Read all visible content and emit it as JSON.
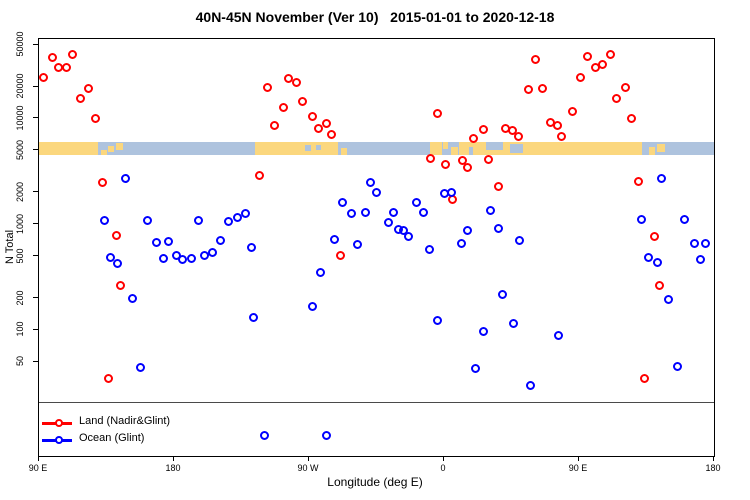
{
  "title": "40N-45N November (Ver 10)   2015-01-01 to 2020-12-18",
  "chart_data": {
    "type": "scatter",
    "title": "40N-45N November (Ver 10)   2015-01-01 to 2020-12-18",
    "xlabel": "Longitude (deg E)",
    "ylabel": "N Total",
    "x_scale": "longitude-wrapped",
    "y_scale": "log",
    "xlim": [
      90,
      540
    ],
    "ylim": [
      6.5,
      57000
    ],
    "x_ticks": [
      {
        "value": 90,
        "label": "90 E"
      },
      {
        "value": 180,
        "label": "180"
      },
      {
        "value": 270,
        "label": "90 W"
      },
      {
        "value": 360,
        "label": "0"
      },
      {
        "value": 450,
        "label": "90 E"
      },
      {
        "value": 540,
        "label": "180"
      }
    ],
    "y_ticks": [
      50,
      100,
      200,
      500,
      1000,
      2000,
      5000,
      10000,
      20000,
      50000
    ],
    "threshold_line": {
      "value": 21,
      "color": "#4a4a4a"
    },
    "map_strip": {
      "description": "land/ocean map of the 40N-45N latitude band drawn as horizontal stripe",
      "top_value": 6050,
      "bottom_value": 4560,
      "ocean_color": "#AEC3DE",
      "land_color": "#FBD77E",
      "land_segments": [
        [
          90,
          129,
          0,
          100
        ],
        [
          131,
          135,
          60,
          40
        ],
        [
          136,
          140,
          30,
          50
        ],
        [
          141,
          146,
          10,
          55
        ],
        [
          234,
          289,
          0,
          100
        ],
        [
          291,
          295,
          45,
          55
        ],
        [
          350.5,
          358.5,
          0,
          100
        ],
        [
          359,
          362.5,
          0,
          55
        ],
        [
          364.5,
          369,
          35,
          65
        ],
        [
          370,
          492,
          0,
          100
        ],
        [
          496.5,
          500.5,
          35,
          65
        ],
        [
          502,
          507,
          15,
          60
        ]
      ],
      "water_patches": [
        [
          267.5,
          271,
          25,
          45
        ],
        [
          274.5,
          278,
          22,
          40
        ],
        [
          376.5,
          379.5,
          40,
          60
        ],
        [
          388,
          399,
          0,
          58
        ],
        [
          404,
          412.5,
          18,
          64
        ]
      ]
    },
    "series": [
      {
        "name": "Land (Nadir&Glint)",
        "color": "#FF0000",
        "points": [
          {
            "lon": 99.3,
            "n": 38000
          },
          {
            "lon": 112.7,
            "n": 40000
          },
          {
            "lon": 103.3,
            "n": 30500
          },
          {
            "lon": 108.7,
            "n": 30500
          },
          {
            "lon": 93.3,
            "n": 24500
          },
          {
            "lon": 123.3,
            "n": 19300
          },
          {
            "lon": 118.0,
            "n": 15500
          },
          {
            "lon": 128.0,
            "n": 9900
          },
          {
            "lon": 132.7,
            "n": 2500
          },
          {
            "lon": 142.0,
            "n": 780
          },
          {
            "lon": 144.7,
            "n": 260
          },
          {
            "lon": 136.7,
            "n": 35
          },
          {
            "lon": 242.7,
            "n": 19700
          },
          {
            "lon": 256.7,
            "n": 24000
          },
          {
            "lon": 262.0,
            "n": 22000
          },
          {
            "lon": 266.0,
            "n": 14500
          },
          {
            "lon": 253.3,
            "n": 12700
          },
          {
            "lon": 272.7,
            "n": 10500
          },
          {
            "lon": 247.3,
            "n": 8500
          },
          {
            "lon": 276.7,
            "n": 8100
          },
          {
            "lon": 282.0,
            "n": 8900
          },
          {
            "lon": 285.3,
            "n": 7100
          },
          {
            "lon": 237.3,
            "n": 2900
          },
          {
            "lon": 291.3,
            "n": 500
          },
          {
            "lon": 356.0,
            "n": 11000
          },
          {
            "lon": 366.0,
            "n": 1700
          },
          {
            "lon": 351.3,
            "n": 4200
          },
          {
            "lon": 361.3,
            "n": 3650
          },
          {
            "lon": 372.7,
            "n": 4000
          },
          {
            "lon": 376.0,
            "n": 3400
          },
          {
            "lon": 380.0,
            "n": 6500
          },
          {
            "lon": 386.7,
            "n": 7900
          },
          {
            "lon": 390.0,
            "n": 4100
          },
          {
            "lon": 396.7,
            "n": 2260
          },
          {
            "lon": 421.3,
            "n": 36000
          },
          {
            "lon": 416.7,
            "n": 18800
          },
          {
            "lon": 426.0,
            "n": 19300
          },
          {
            "lon": 431.3,
            "n": 9100
          },
          {
            "lon": 436.0,
            "n": 8500
          },
          {
            "lon": 401.3,
            "n": 8100
          },
          {
            "lon": 406.0,
            "n": 7600
          },
          {
            "lon": 410.0,
            "n": 6800
          },
          {
            "lon": 438.7,
            "n": 6800
          },
          {
            "lon": 446.0,
            "n": 11700
          },
          {
            "lon": 451.3,
            "n": 24500
          },
          {
            "lon": 456.0,
            "n": 38500
          },
          {
            "lon": 461.3,
            "n": 30500
          },
          {
            "lon": 466.0,
            "n": 32500
          },
          {
            "lon": 471.3,
            "n": 40000
          },
          {
            "lon": 475.3,
            "n": 15500
          },
          {
            "lon": 481.3,
            "n": 19700
          },
          {
            "lon": 485.3,
            "n": 10000
          },
          {
            "lon": 490.0,
            "n": 2550
          },
          {
            "lon": 500.7,
            "n": 760
          },
          {
            "lon": 504.0,
            "n": 260
          },
          {
            "lon": 494.0,
            "n": 35
          }
        ]
      },
      {
        "name": "Ocean (Glint)",
        "color": "#0000FF",
        "points": [
          {
            "lon": 148.0,
            "n": 2700
          },
          {
            "lon": 134.0,
            "n": 1080
          },
          {
            "lon": 138.0,
            "n": 480
          },
          {
            "lon": 142.7,
            "n": 420
          },
          {
            "lon": 152.7,
            "n": 200
          },
          {
            "lon": 158.0,
            "n": 44
          },
          {
            "lon": 162.7,
            "n": 1080
          },
          {
            "lon": 168.7,
            "n": 670
          },
          {
            "lon": 173.3,
            "n": 470
          },
          {
            "lon": 176.7,
            "n": 690
          },
          {
            "lon": 182.0,
            "n": 500
          },
          {
            "lon": 186.0,
            "n": 460
          },
          {
            "lon": 192.0,
            "n": 470
          },
          {
            "lon": 196.7,
            "n": 1080
          },
          {
            "lon": 200.7,
            "n": 500
          },
          {
            "lon": 206.0,
            "n": 540
          },
          {
            "lon": 211.3,
            "n": 700
          },
          {
            "lon": 216.7,
            "n": 1050
          },
          {
            "lon": 222.7,
            "n": 1150
          },
          {
            "lon": 228.0,
            "n": 1250
          },
          {
            "lon": 232.0,
            "n": 600
          },
          {
            "lon": 233.3,
            "n": 130
          },
          {
            "lon": 240.7,
            "n": 10
          },
          {
            "lon": 272.7,
            "n": 165
          },
          {
            "lon": 278.0,
            "n": 350
          },
          {
            "lon": 282.0,
            "n": 10
          },
          {
            "lon": 287.3,
            "n": 710
          },
          {
            "lon": 292.7,
            "n": 1600
          },
          {
            "lon": 298.7,
            "n": 1250
          },
          {
            "lon": 302.7,
            "n": 640
          },
          {
            "lon": 308.0,
            "n": 1280
          },
          {
            "lon": 311.3,
            "n": 2450
          },
          {
            "lon": 315.3,
            "n": 2000
          },
          {
            "lon": 323.3,
            "n": 1030
          },
          {
            "lon": 326.7,
            "n": 1300
          },
          {
            "lon": 330.0,
            "n": 890
          },
          {
            "lon": 333.3,
            "n": 870
          },
          {
            "lon": 336.7,
            "n": 770
          },
          {
            "lon": 342.0,
            "n": 1600
          },
          {
            "lon": 346.7,
            "n": 1300
          },
          {
            "lon": 350.7,
            "n": 580
          },
          {
            "lon": 356.0,
            "n": 123
          },
          {
            "lon": 360.7,
            "n": 1950
          },
          {
            "lon": 365.3,
            "n": 2000
          },
          {
            "lon": 372.0,
            "n": 650
          },
          {
            "lon": 376.0,
            "n": 870
          },
          {
            "lon": 381.3,
            "n": 43
          },
          {
            "lon": 386.7,
            "n": 96
          },
          {
            "lon": 391.3,
            "n": 1350
          },
          {
            "lon": 396.7,
            "n": 900
          },
          {
            "lon": 399.3,
            "n": 215
          },
          {
            "lon": 406.7,
            "n": 114
          },
          {
            "lon": 418.0,
            "n": 30
          },
          {
            "lon": 410.7,
            "n": 700
          },
          {
            "lon": 436.7,
            "n": 88
          },
          {
            "lon": 492.0,
            "n": 1100
          },
          {
            "lon": 496.7,
            "n": 480
          },
          {
            "lon": 502.7,
            "n": 430
          },
          {
            "lon": 505.3,
            "n": 2700
          },
          {
            "lon": 510.0,
            "n": 195
          },
          {
            "lon": 516.0,
            "n": 45
          },
          {
            "lon": 520.7,
            "n": 1100
          },
          {
            "lon": 527.3,
            "n": 650
          },
          {
            "lon": 531.3,
            "n": 465
          },
          {
            "lon": 534.7,
            "n": 660
          }
        ]
      }
    ],
    "legend_position": "bottom-left"
  }
}
